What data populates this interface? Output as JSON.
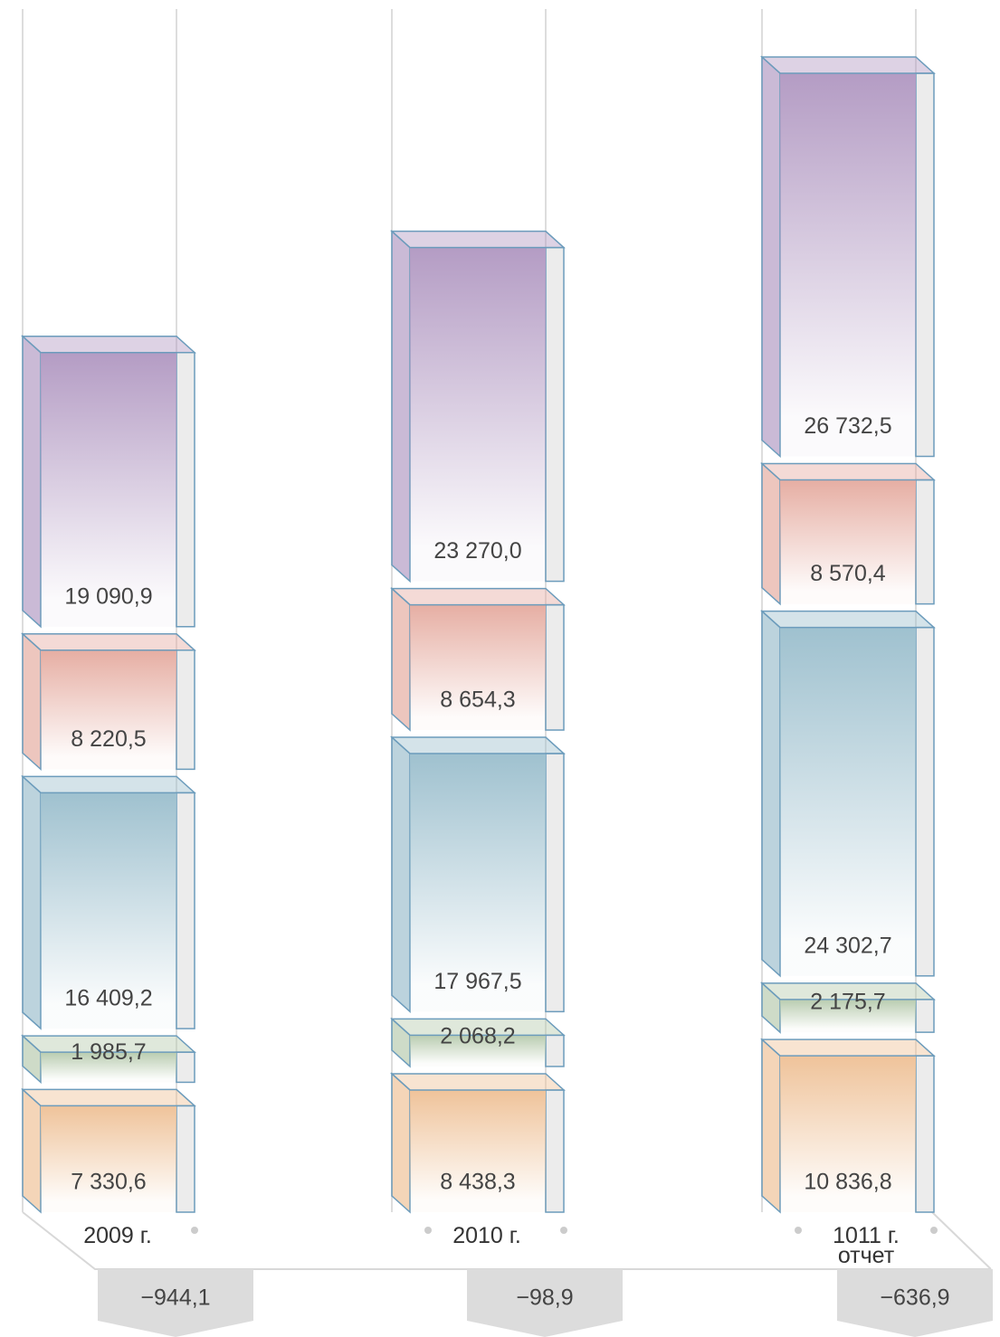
{
  "chart_data": {
    "type": "bar",
    "stacked": true,
    "categories": [
      "2009 г.",
      "2010 г.",
      "1011 г.\nотчет"
    ],
    "series": [
      {
        "color": "#efc39a",
        "values": [
          7330.6,
          8438.3,
          10836.8
        ],
        "value_labels": [
          "7 330,6",
          "8 438,3",
          "10 836,8"
        ]
      },
      {
        "color": "#b9ccb0",
        "values": [
          1985.7,
          2068.2,
          2175.7
        ],
        "value_labels": [
          "1 985,7",
          "2 068,2",
          "2 175,7"
        ]
      },
      {
        "color": "#9fc1cf",
        "values": [
          16409.2,
          17967.5,
          24302.7
        ],
        "value_labels": [
          "16 409,2",
          "17 967,5",
          "24 302,7"
        ]
      },
      {
        "color": "#e6aea3",
        "values": [
          8220.5,
          8654.3,
          8570.4
        ],
        "value_labels": [
          "8 220,5",
          "8 654,3",
          "8 570,4"
        ]
      },
      {
        "color": "#b49cc4",
        "values": [
          19090.9,
          23270.0,
          26732.5
        ],
        "value_labels": [
          "19 090,9",
          "23 270,0",
          "26 732,5"
        ]
      }
    ],
    "balance": {
      "values": [
        -944.1,
        -98.9,
        -636.9
      ],
      "value_labels": [
        "−944,1",
        "−98,9",
        "−636,9"
      ]
    }
  }
}
